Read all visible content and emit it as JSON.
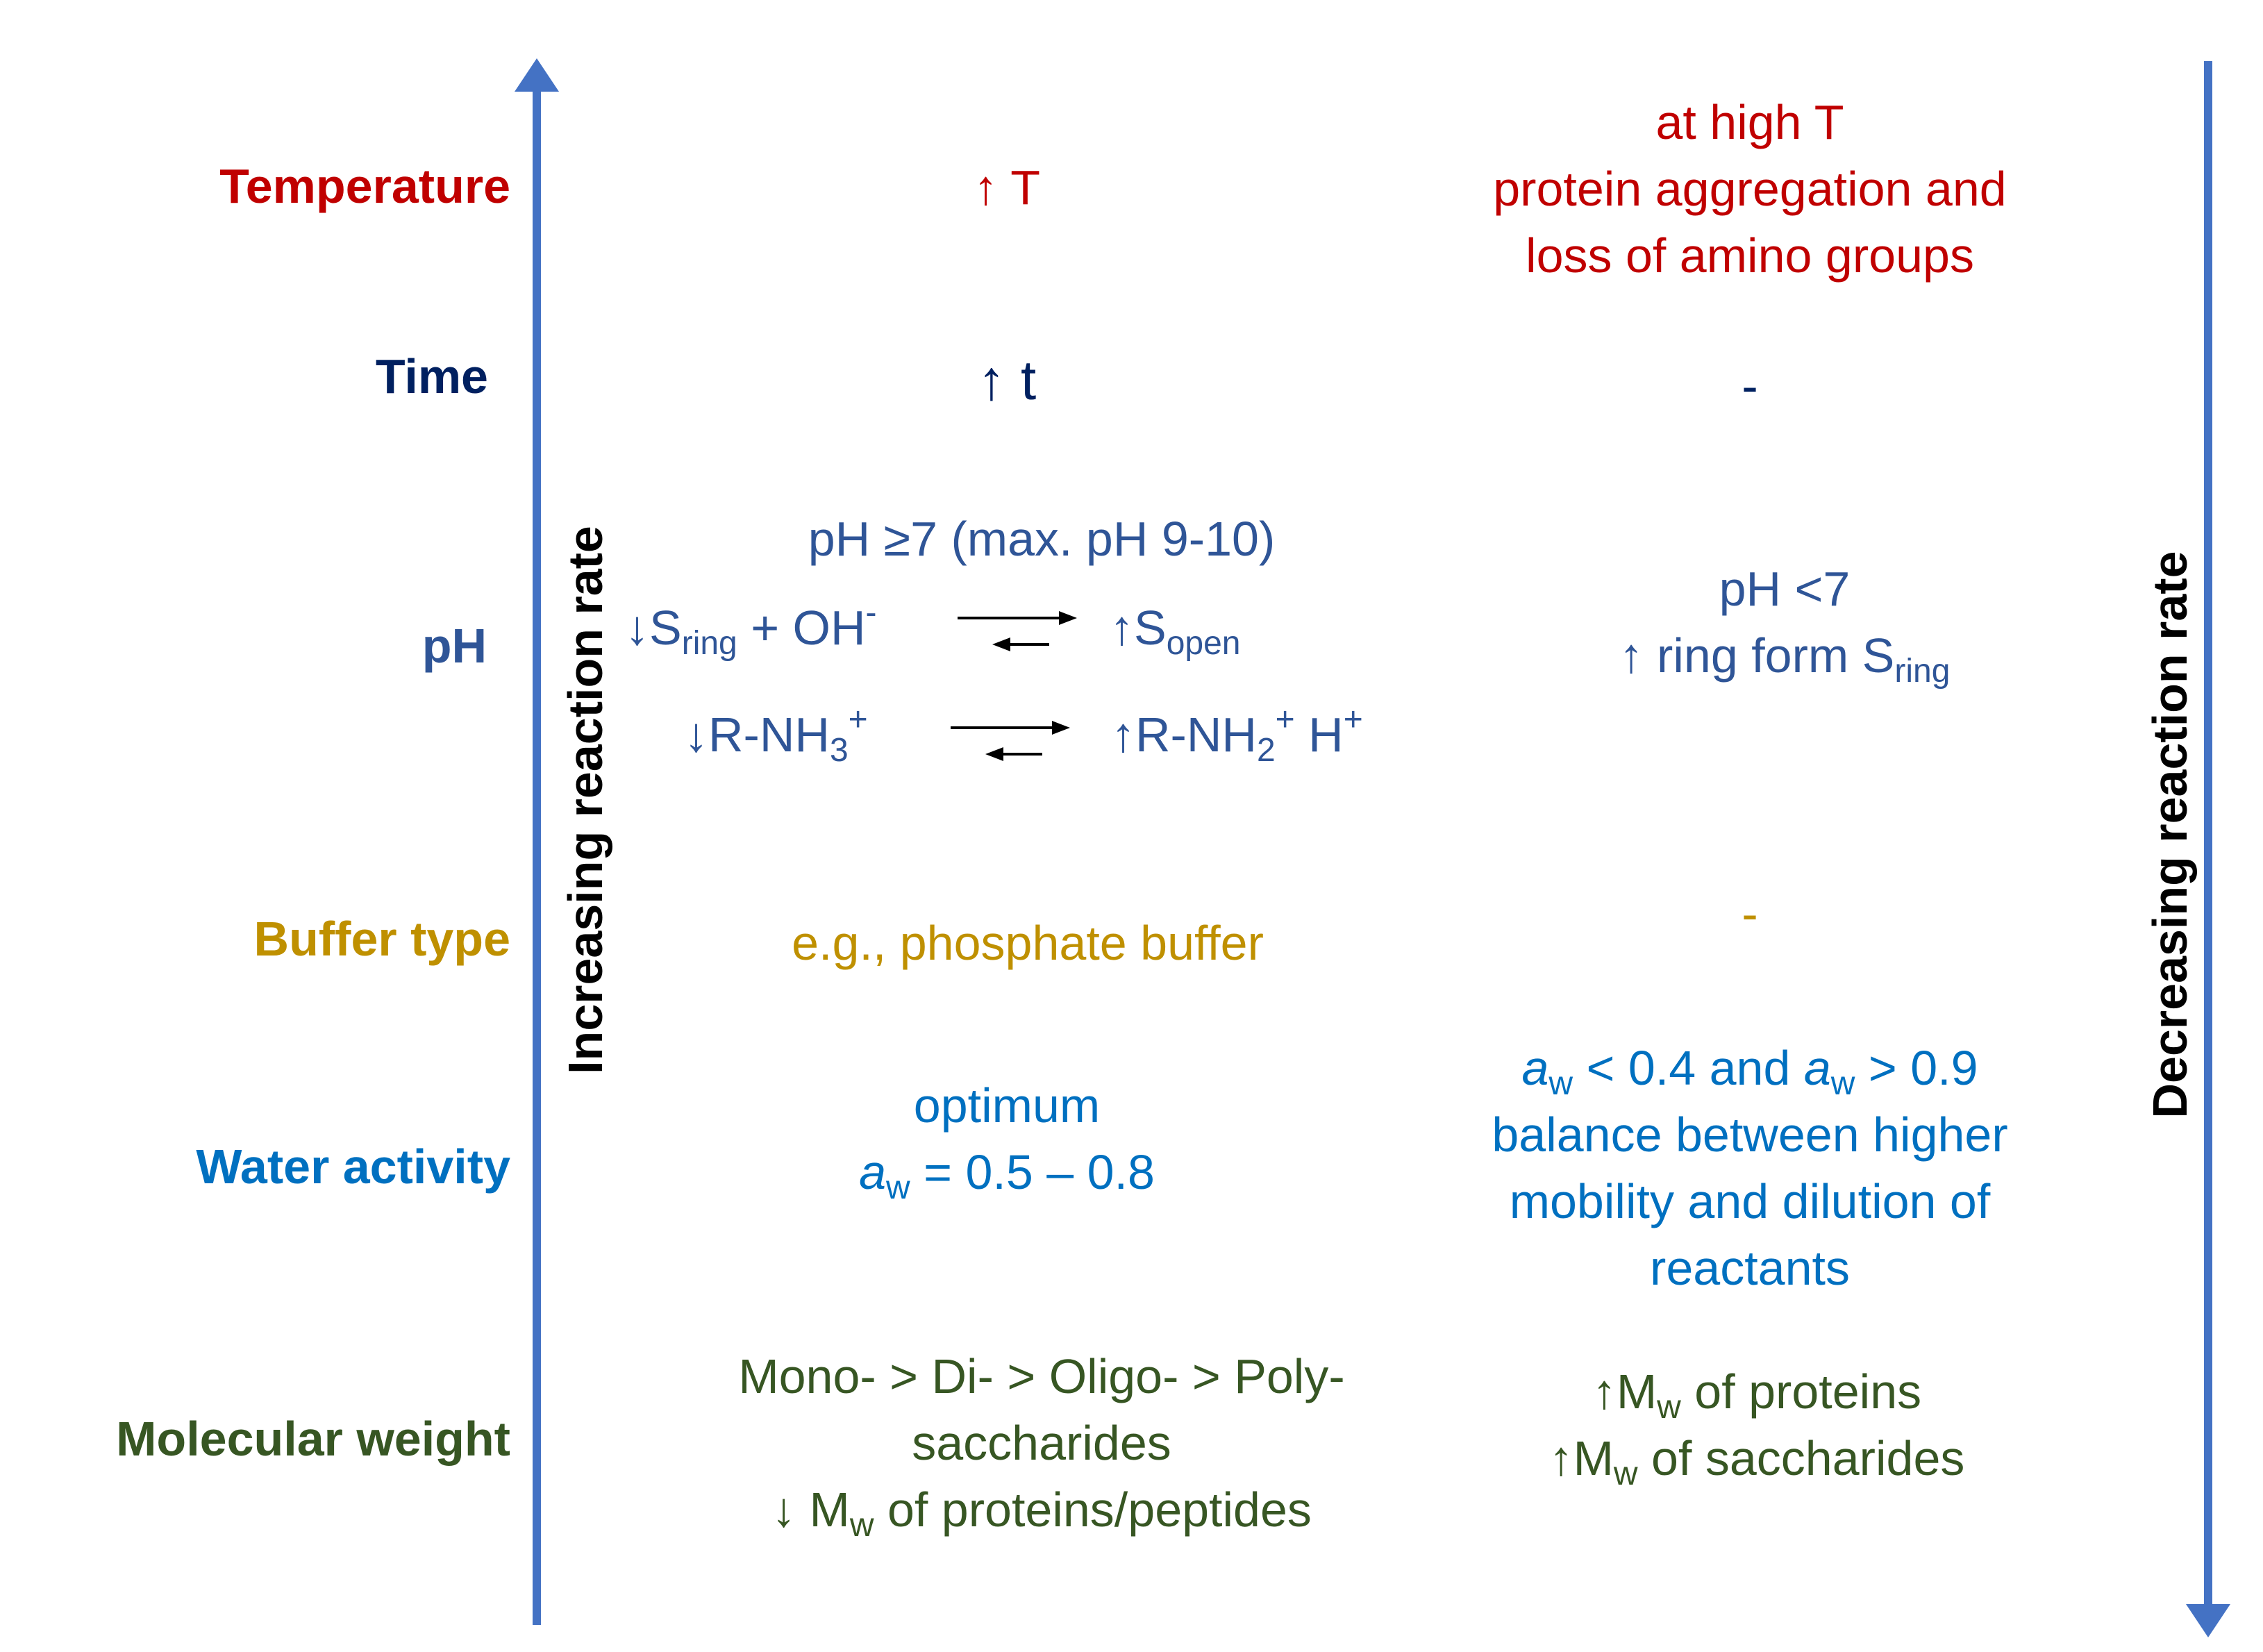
{
  "axes": {
    "left_label": "Increasing reaction rate",
    "right_label": "Decreasing reaction rate",
    "color": "#4472C4"
  },
  "colors": {
    "temperature": "#C00000",
    "time": "#002060",
    "ph": "#2F5597",
    "buffer": "#BF9000",
    "water": "#0070C0",
    "molecular": "#375623"
  },
  "temperature": {
    "label": "Temperature",
    "increase": "↑ T",
    "decrease": [
      "at high T",
      "protein aggregation and",
      "loss of amino groups"
    ]
  },
  "time": {
    "label": "Time",
    "increase": "↑ t",
    "decrease": "-"
  },
  "ph": {
    "label": "pH",
    "increase_title": "pH ≥7 (max. pH 9-10)",
    "eq1_left": "↓S",
    "eq1_left_sub": "ring",
    "eq1_plus": " + OH",
    "eq1_plus_sup": "-",
    "eq1_right": "↑S",
    "eq1_right_sub": "open",
    "eq2_left": "↓R-NH",
    "eq2_left_sub": "3",
    "eq2_left_sup": "+",
    "eq2_right": "↑R-NH",
    "eq2_right_sub": "2",
    "eq2_right_sup": "+",
    "eq2_right_tail": " H",
    "eq2_right_tail_sup": "+",
    "decrease_line1": "pH <7",
    "decrease_line2": "↑ ring form S",
    "decrease_line2_sub": "ring"
  },
  "buffer": {
    "label": "Buffer type",
    "increase": "e.g., phosphate buffer",
    "decrease": "-"
  },
  "water": {
    "label": "Water activity",
    "increase_line1": "optimum",
    "increase_a": "a",
    "increase_a_sub": "w",
    "increase_tail": " = 0.5 – 0.8",
    "decrease_a1": "a",
    "decrease_a1_sub": "w",
    "decrease_mid": " < 0.4 and ",
    "decrease_a2": "a",
    "decrease_a2_sub": "w",
    "decrease_tail": " > 0.9",
    "decrease_lines": [
      "balance between higher",
      "mobility and dilution of",
      "reactants"
    ]
  },
  "molecular": {
    "label": "Molecular weight",
    "increase_lines": [
      "Mono- > Di- > Oligo- > Poly-",
      "saccharides"
    ],
    "increase_mw_prefix": "↓ M",
    "increase_mw_sub": "w",
    "increase_mw_tail": " of proteins/peptides",
    "decrease_1_prefix": "↑M",
    "decrease_1_sub": "w",
    "decrease_1_tail": " of proteins",
    "decrease_2_prefix": "↑M",
    "decrease_2_sub": "w",
    "decrease_2_tail": " of saccharides"
  }
}
